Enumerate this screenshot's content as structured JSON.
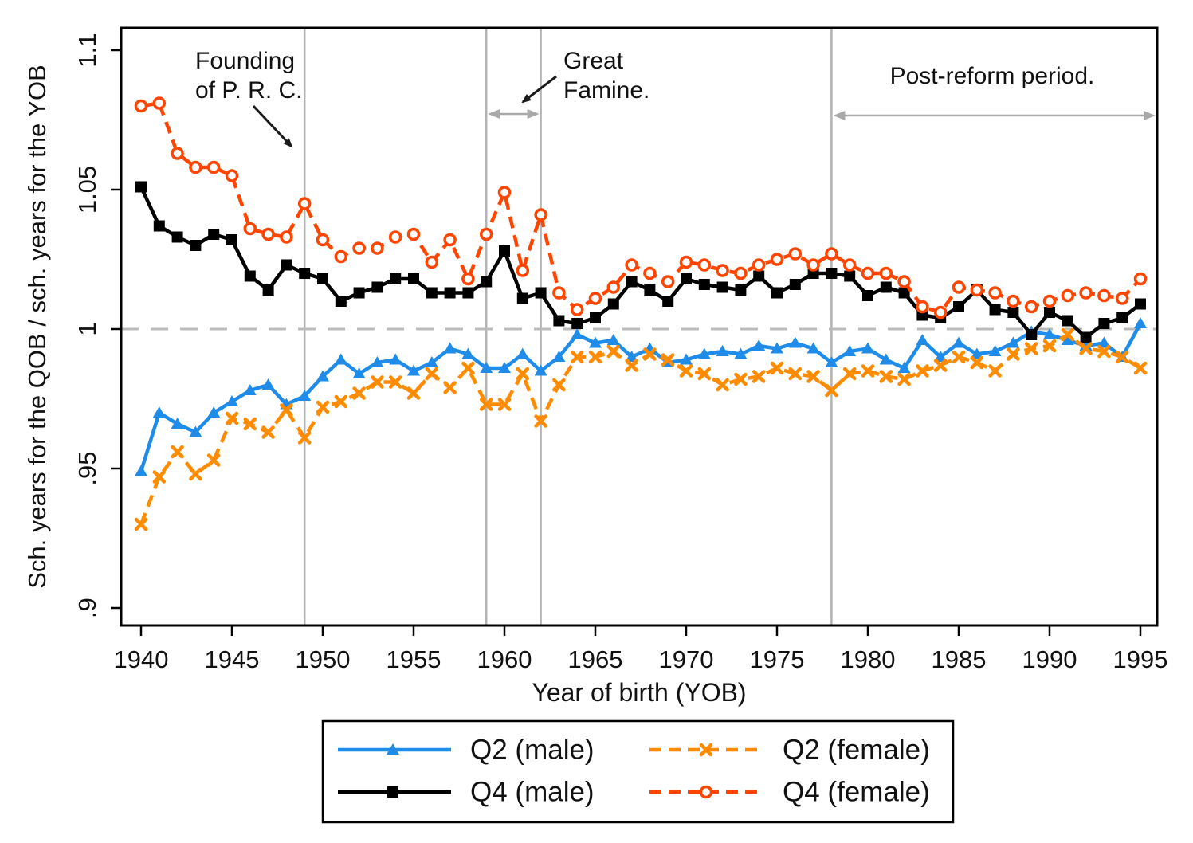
{
  "figure": {
    "background": "#ffffff",
    "border_color": "#000000",
    "event_line_color": "#b3b3b3",
    "reference_line_color": "#bbbbbb",
    "arrow_color_black": "#1a1a1a",
    "arrow_color_gray": "#a9a9a9"
  },
  "annotations": {
    "founding": {
      "lines": [
        "Founding",
        "of P. R. C."
      ]
    },
    "famine": {
      "lines": [
        "Great",
        "Famine."
      ]
    },
    "post_reform": {
      "text": "Post-reform period."
    }
  },
  "legend": {
    "entries": [
      {
        "key": "q2_male",
        "label": "Q2 (male)"
      },
      {
        "key": "q2_female",
        "label": "Q2 (female)"
      },
      {
        "key": "q4_male",
        "label": "Q4 (male)"
      },
      {
        "key": "q4_female",
        "label": "Q4 (female)"
      }
    ]
  },
  "chart_data": {
    "type": "line",
    "title": "",
    "xlabel": "Year of birth (YOB)",
    "ylabel": "Sch. years for the QOB / sch. years for the YOB",
    "xlim": [
      1938.9,
      1995.9
    ],
    "ylim": [
      0.893,
      1.108
    ],
    "grid": "off",
    "legend_position": "bottom",
    "x_ticks": [
      1940,
      1945,
      1950,
      1955,
      1960,
      1965,
      1970,
      1975,
      1980,
      1985,
      1990,
      1995
    ],
    "y_ticks": [
      {
        "v": 0.9,
        "label": ".9"
      },
      {
        "v": 0.95,
        "label": ".95"
      },
      {
        "v": 1.0,
        "label": "1"
      },
      {
        "v": 1.05,
        "label": "1.05"
      },
      {
        "v": 1.1,
        "label": "1.1"
      }
    ],
    "reference_line_y": 1,
    "event_lines": [
      {
        "year": 1949,
        "meaning": "Founding of P. R. C."
      },
      {
        "year": 1959,
        "meaning": "Great Famine start"
      },
      {
        "year": 1962,
        "meaning": "Great Famine end"
      },
      {
        "year": 1978,
        "meaning": "Post-reform period start"
      }
    ],
    "span_arrows": [
      {
        "from_year": 1959,
        "to_year": 1962,
        "label": "Great Famine."
      },
      {
        "from_year": 1978,
        "to_year": 1995.9,
        "label": "Post-reform period."
      }
    ],
    "x": [
      1940,
      1941,
      1942,
      1943,
      1944,
      1945,
      1946,
      1947,
      1948,
      1949,
      1950,
      1951,
      1952,
      1953,
      1954,
      1955,
      1956,
      1957,
      1958,
      1959,
      1960,
      1961,
      1962,
      1963,
      1964,
      1965,
      1966,
      1967,
      1968,
      1969,
      1970,
      1971,
      1972,
      1973,
      1974,
      1975,
      1976,
      1977,
      1978,
      1979,
      1980,
      1981,
      1982,
      1983,
      1984,
      1985,
      1986,
      1987,
      1988,
      1989,
      1990,
      1991,
      1992,
      1993,
      1994,
      1995
    ],
    "series": [
      {
        "key": "q2_male",
        "name": "Q2 (male)",
        "color": "#1E8CE8",
        "line": "solid",
        "marker": "triangle",
        "values": [
          0.949,
          0.97,
          0.966,
          0.963,
          0.97,
          0.974,
          0.978,
          0.98,
          0.973,
          0.976,
          0.983,
          0.989,
          0.984,
          0.988,
          0.989,
          0.985,
          0.988,
          0.993,
          0.991,
          0.986,
          0.986,
          0.991,
          0.985,
          0.99,
          0.998,
          0.995,
          0.996,
          0.99,
          0.993,
          0.988,
          0.989,
          0.991,
          0.992,
          0.991,
          0.994,
          0.993,
          0.995,
          0.993,
          0.988,
          0.992,
          0.993,
          0.989,
          0.986,
          0.996,
          0.99,
          0.995,
          0.991,
          0.992,
          0.995,
          0.999,
          0.998,
          0.996,
          0.994,
          0.995,
          0.99,
          1.002
        ]
      },
      {
        "key": "q4_male",
        "name": "Q4 (male)",
        "color": "#000000",
        "line": "solid",
        "marker": "square",
        "values": [
          1.051,
          1.037,
          1.033,
          1.03,
          1.034,
          1.032,
          1.019,
          1.014,
          1.023,
          1.02,
          1.018,
          1.01,
          1.013,
          1.015,
          1.018,
          1.018,
          1.013,
          1.013,
          1.013,
          1.017,
          1.028,
          1.011,
          1.013,
          1.003,
          1.002,
          1.004,
          1.009,
          1.017,
          1.014,
          1.01,
          1.018,
          1.016,
          1.015,
          1.014,
          1.019,
          1.013,
          1.016,
          1.02,
          1.02,
          1.019,
          1.012,
          1.015,
          1.013,
          1.005,
          1.004,
          1.008,
          1.014,
          1.007,
          1.006,
          0.998,
          1.006,
          1.003,
          0.997,
          1.002,
          1.004,
          1.009
        ]
      },
      {
        "key": "q2_female",
        "name": "Q2 (female)",
        "color": "#FF8C00",
        "line": "dashed",
        "marker": "x",
        "values": [
          0.93,
          0.947,
          0.956,
          0.948,
          0.953,
          0.968,
          0.966,
          0.963,
          0.971,
          0.961,
          0.972,
          0.974,
          0.977,
          0.981,
          0.981,
          0.977,
          0.984,
          0.979,
          0.986,
          0.973,
          0.973,
          0.984,
          0.967,
          0.98,
          0.99,
          0.99,
          0.992,
          0.987,
          0.991,
          0.989,
          0.985,
          0.984,
          0.98,
          0.982,
          0.983,
          0.986,
          0.984,
          0.983,
          0.978,
          0.984,
          0.985,
          0.983,
          0.982,
          0.985,
          0.987,
          0.99,
          0.988,
          0.985,
          0.991,
          0.993,
          0.994,
          0.998,
          0.993,
          0.992,
          0.99,
          0.986
        ]
      },
      {
        "key": "q4_female",
        "name": "Q4 (female)",
        "color": "#FF4500",
        "line": "dashed",
        "marker": "circle",
        "values": [
          1.08,
          1.081,
          1.063,
          1.058,
          1.058,
          1.055,
          1.036,
          1.034,
          1.033,
          1.045,
          1.032,
          1.026,
          1.029,
          1.029,
          1.033,
          1.034,
          1.024,
          1.032,
          1.018,
          1.034,
          1.049,
          1.021,
          1.041,
          1.013,
          1.007,
          1.011,
          1.015,
          1.023,
          1.02,
          1.017,
          1.024,
          1.023,
          1.021,
          1.02,
          1.023,
          1.025,
          1.027,
          1.023,
          1.027,
          1.023,
          1.02,
          1.02,
          1.017,
          1.008,
          1.006,
          1.015,
          1.014,
          1.013,
          1.01,
          1.008,
          1.01,
          1.012,
          1.013,
          1.012,
          1.011,
          1.018
        ]
      }
    ]
  }
}
